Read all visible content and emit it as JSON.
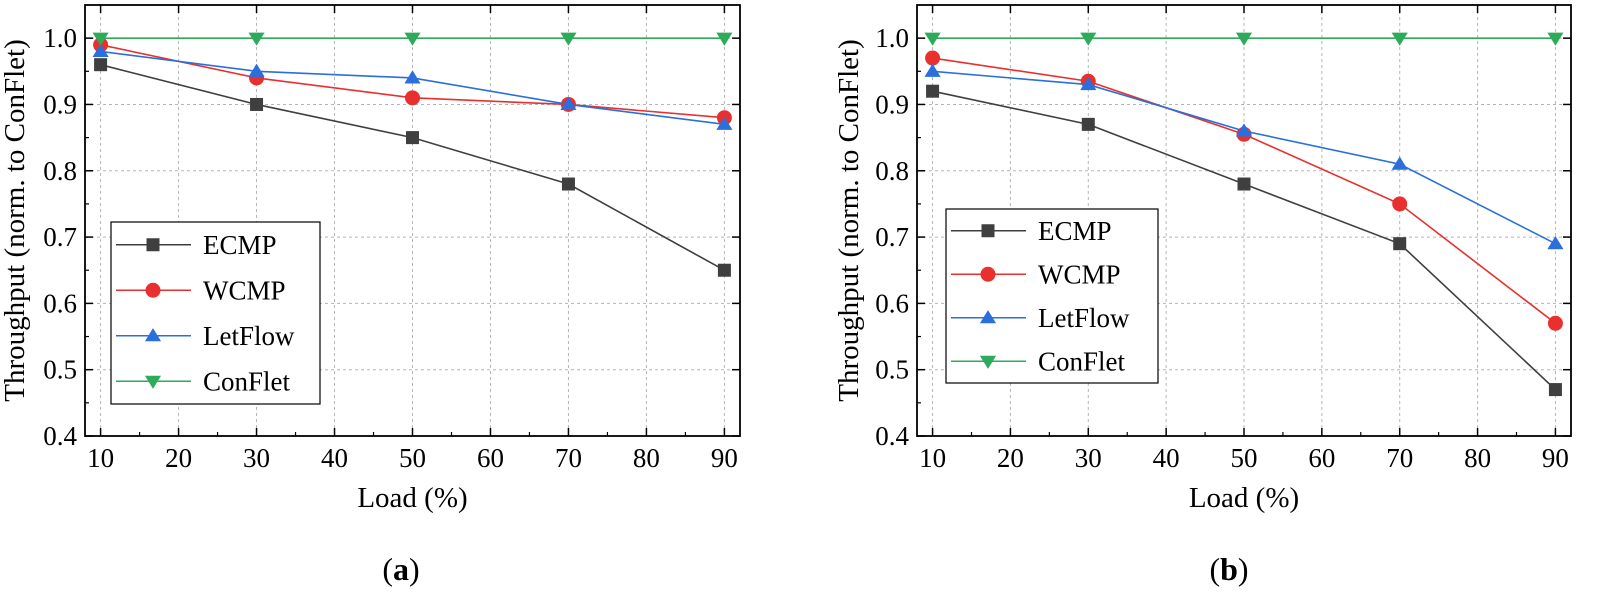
{
  "chart_data": [
    {
      "type": "line",
      "caption": "(a)",
      "xlabel": "Load (%)",
      "ylabel": "Throughput (norm. to ConFlet)",
      "x": [
        10,
        30,
        50,
        70,
        90
      ],
      "xlim": [
        8,
        92
      ],
      "xticks": [
        10,
        20,
        30,
        40,
        50,
        60,
        70,
        80,
        90
      ],
      "ylim": [
        0.4,
        1.05
      ],
      "yticks": [
        "0.4",
        "0.5",
        "0.6",
        "0.7",
        "0.8",
        "0.9",
        "1.0"
      ],
      "grid": true,
      "legend_position": "bottom-left",
      "series": [
        {
          "name": "ECMP",
          "values": [
            0.96,
            0.9,
            0.85,
            0.78,
            0.65
          ],
          "color": "#3f3f3f",
          "marker": "square"
        },
        {
          "name": "WCMP",
          "values": [
            0.99,
            0.94,
            0.91,
            0.9,
            0.88
          ],
          "color": "#e8302e",
          "marker": "circle"
        },
        {
          "name": "LetFlow",
          "values": [
            0.98,
            0.95,
            0.94,
            0.9,
            0.87
          ],
          "color": "#2a6fdb",
          "marker": "triangle-up"
        },
        {
          "name": "ConFlet",
          "values": [
            1.0,
            1.0,
            1.0,
            1.0,
            1.0
          ],
          "color": "#2eab5a",
          "marker": "triangle-down"
        }
      ]
    },
    {
      "type": "line",
      "caption": "(b)",
      "xlabel": "Load (%)",
      "ylabel": "Throughput (norm. to ConFlet)",
      "x": [
        10,
        30,
        50,
        70,
        90
      ],
      "xlim": [
        8,
        92
      ],
      "xticks": [
        10,
        20,
        30,
        40,
        50,
        60,
        70,
        80,
        90
      ],
      "ylim": [
        0.4,
        1.05
      ],
      "yticks": [
        "0.4",
        "0.5",
        "0.6",
        "0.7",
        "0.8",
        "0.9",
        "1.0"
      ],
      "grid": true,
      "legend_position": "bottom-left",
      "series": [
        {
          "name": "ECMP",
          "values": [
            0.92,
            0.87,
            0.78,
            0.69,
            0.47
          ],
          "color": "#3f3f3f",
          "marker": "square"
        },
        {
          "name": "WCMP",
          "values": [
            0.97,
            0.935,
            0.855,
            0.75,
            0.57
          ],
          "color": "#e8302e",
          "marker": "circle"
        },
        {
          "name": "LetFlow",
          "values": [
            0.95,
            0.93,
            0.86,
            0.81,
            0.69
          ],
          "color": "#2a6fdb",
          "marker": "triangle-up"
        },
        {
          "name": "ConFlet",
          "values": [
            1.0,
            1.0,
            1.0,
            1.0,
            1.0
          ],
          "color": "#2eab5a",
          "marker": "triangle-down"
        }
      ]
    }
  ]
}
